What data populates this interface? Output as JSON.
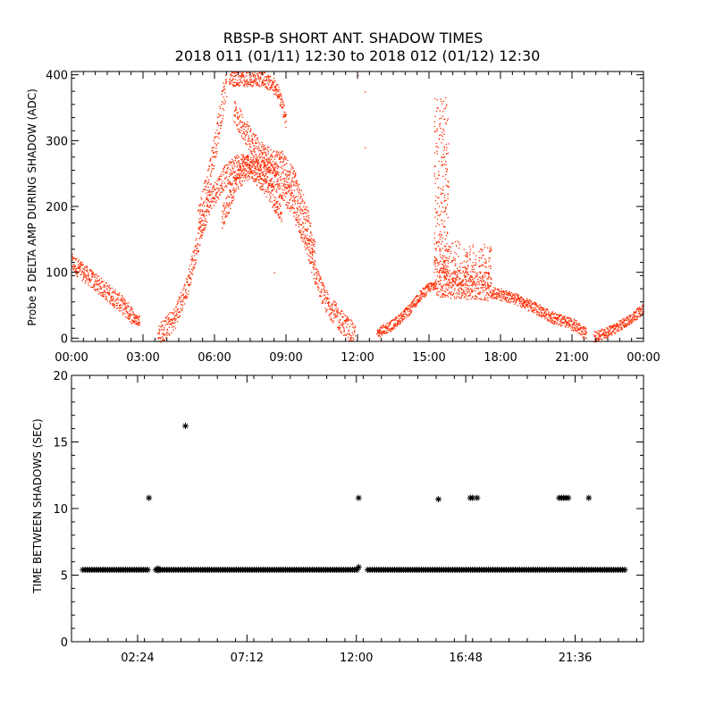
{
  "title": {
    "line1": "RBSP-B SHORT ANT. SHADOW TIMES",
    "line2": "2018 011 (01/11) 12:30 to 2018 012 (01/12) 12:30"
  },
  "colors": {
    "top_points": "#ff2a00",
    "bottom_points": "#000000",
    "axes": "#000000"
  },
  "chart_data": [
    {
      "type": "scatter",
      "ylabel": "Probe 5 DELTA AMP DURING SHADOW (ADC)",
      "xlim": [
        0,
        24
      ],
      "ylim": [
        -5,
        405
      ],
      "xtick_labels": [
        {
          "x": 0,
          "label": "00:00"
        },
        {
          "x": 3,
          "label": "03:00"
        },
        {
          "x": 6,
          "label": "06:00"
        },
        {
          "x": 9,
          "label": "09:00"
        },
        {
          "x": 12,
          "label": "12:00"
        },
        {
          "x": 15,
          "label": "15:00"
        },
        {
          "x": 18,
          "label": "18:00"
        },
        {
          "x": 21,
          "label": "21:00"
        },
        {
          "x": 24,
          "label": "00:00"
        }
      ],
      "ytick_labels": [
        {
          "y": 0,
          "label": "0"
        },
        {
          "y": 100,
          "label": "100"
        },
        {
          "y": 200,
          "label": "200"
        },
        {
          "y": 300,
          "label": "300"
        },
        {
          "y": 400,
          "label": "400"
        }
      ],
      "series": [
        {
          "bands": [
            {
              "points": [
                [
                  0,
                  115
                ],
                [
                  1,
                  85
                ],
                [
                  2,
                  55
                ],
                [
                  2.6,
                  33
                ]
              ],
              "spread": 14
            },
            {
              "points": [
                [
                  2.6,
                  30
                ],
                [
                  2.85,
                  28
                ]
              ],
              "spread": 8
            },
            {
              "points": [
                [
                  3.6,
                  3
                ],
                [
                  4.3,
                  30
                ],
                [
                  4.8,
                  75
                ],
                [
                  5.2,
                  135
                ],
                [
                  5.5,
                  175
                ],
                [
                  5.8,
                  210
                ],
                [
                  6.3,
                  240
                ],
                [
                  6.8,
                  260
                ],
                [
                  7.3,
                  265
                ],
                [
                  7.8,
                  262
                ],
                [
                  8.3,
                  250
                ],
                [
                  8.8,
                  230
                ],
                [
                  9.3,
                  200
                ],
                [
                  9.8,
                  150
                ],
                [
                  10.2,
                  100
                ],
                [
                  10.6,
                  60
                ],
                [
                  11.2,
                  30
                ],
                [
                  11.6,
                  15
                ],
                [
                  11.9,
                  2
                ]
              ],
              "spread": 18
            },
            {
              "points": [
                [
                  5.3,
                  175
                ],
                [
                  5.8,
                  250
                ],
                [
                  6.2,
                  330
                ],
                [
                  6.5,
                  395
                ]
              ],
              "spread": 25
            },
            {
              "points": [
                [
                  6.3,
                  180
                ],
                [
                  6.8,
                  230
                ],
                [
                  7.3,
                  260
                ],
                [
                  7.8,
                  250
                ],
                [
                  8.3,
                  225
                ],
                [
                  8.8,
                  190
                ]
              ],
              "spread": 18
            },
            {
              "points": [
                [
                  6.8,
                  345
                ],
                [
                  7.3,
                  315
                ],
                [
                  7.8,
                  285
                ],
                [
                  8.3,
                  270
                ],
                [
                  8.8,
                  265
                ],
                [
                  9.3,
                  240
                ],
                [
                  9.8,
                  190
                ],
                [
                  10.2,
                  130
                ]
              ],
              "spread": 20
            },
            {
              "points": [
                [
                  6.6,
                  395
                ],
                [
                  7.3,
                  395
                ],
                [
                  8.0,
                  395
                ],
                [
                  8.6,
                  380
                ],
                [
                  9.0,
                  330
                ]
              ],
              "spread": 12
            },
            {
              "points": [
                [
                  12.8,
                  8
                ],
                [
                  13.5,
                  22
                ],
                [
                  14.2,
                  45
                ],
                [
                  14.6,
                  65
                ],
                [
                  15.0,
                  78
                ],
                [
                  15.3,
                  82
                ]
              ],
              "spread": 8
            },
            {
              "points": [
                [
                  15.3,
                  85
                ],
                [
                  16.2,
                  82
                ],
                [
                  17.2,
                  80
                ],
                [
                  17.6,
                  78
                ]
              ],
              "spread": 22
            },
            {
              "points": [
                [
                  17.6,
                  70
                ],
                [
                  18.5,
                  62
                ],
                [
                  19.5,
                  45
                ],
                [
                  20.3,
                  30
                ],
                [
                  21.1,
                  20
                ],
                [
                  21.6,
                  6
                ]
              ],
              "spread": 9
            },
            {
              "points": [
                [
                  21.9,
                  2
                ],
                [
                  22.6,
                  12
                ],
                [
                  23.3,
                  26
                ],
                [
                  24,
                  45
                ]
              ],
              "spread": 8
            }
          ],
          "spikes": [
            {
              "x_range": [
                15.2,
                15.8
              ],
              "y_range": [
                100,
                370
              ]
            },
            {
              "x_range": [
                15.6,
                17.6
              ],
              "y_range": [
                80,
                150
              ]
            }
          ],
          "outliers": [
            [
              12.3,
              375
            ],
            [
              12.3,
              290
            ],
            [
              8.5,
              100
            ],
            [
              12.0,
              400
            ]
          ]
        }
      ]
    },
    {
      "type": "scatter",
      "ylabel": "TIME BETWEEN SHADOWS (SEC)",
      "xlim": [
        -0.5,
        24.6
      ],
      "ylim": [
        0,
        20
      ],
      "xtick_labels": [
        {
          "x": 2.4,
          "label": "02:24"
        },
        {
          "x": 7.2,
          "label": "07:12"
        },
        {
          "x": 12.0,
          "label": "12:00"
        },
        {
          "x": 16.8,
          "label": "16:48"
        },
        {
          "x": 21.6,
          "label": "21:36"
        }
      ],
      "ytick_labels": [
        {
          "y": 0,
          "label": "0"
        },
        {
          "y": 5,
          "label": "5"
        },
        {
          "y": 10,
          "label": "10"
        },
        {
          "y": 15,
          "label": "15"
        },
        {
          "y": 20,
          "label": "20"
        }
      ],
      "series": [
        {
          "baseline": {
            "y": 5.4,
            "segments": [
              [
                0,
                2.9
              ],
              [
                3.2,
                12.1
              ],
              [
                12.5,
                23.8
              ]
            ]
          },
          "points": [
            [
              2.9,
              10.8
            ],
            [
              3.3,
              5.5
            ],
            [
              3.3,
              5.35
            ],
            [
              4.5,
              16.2
            ],
            [
              12.1,
              10.8
            ],
            [
              12.1,
              5.6
            ],
            [
              15.6,
              10.7
            ],
            [
              17.0,
              10.8
            ],
            [
              17.1,
              10.8
            ],
            [
              17.3,
              10.8
            ],
            [
              20.9,
              10.8
            ],
            [
              21.0,
              10.8
            ],
            [
              21.1,
              10.8
            ],
            [
              21.2,
              10.8
            ],
            [
              21.3,
              10.8
            ],
            [
              21.9,
              5.4
            ],
            [
              22.2,
              10.8
            ]
          ]
        }
      ]
    }
  ]
}
